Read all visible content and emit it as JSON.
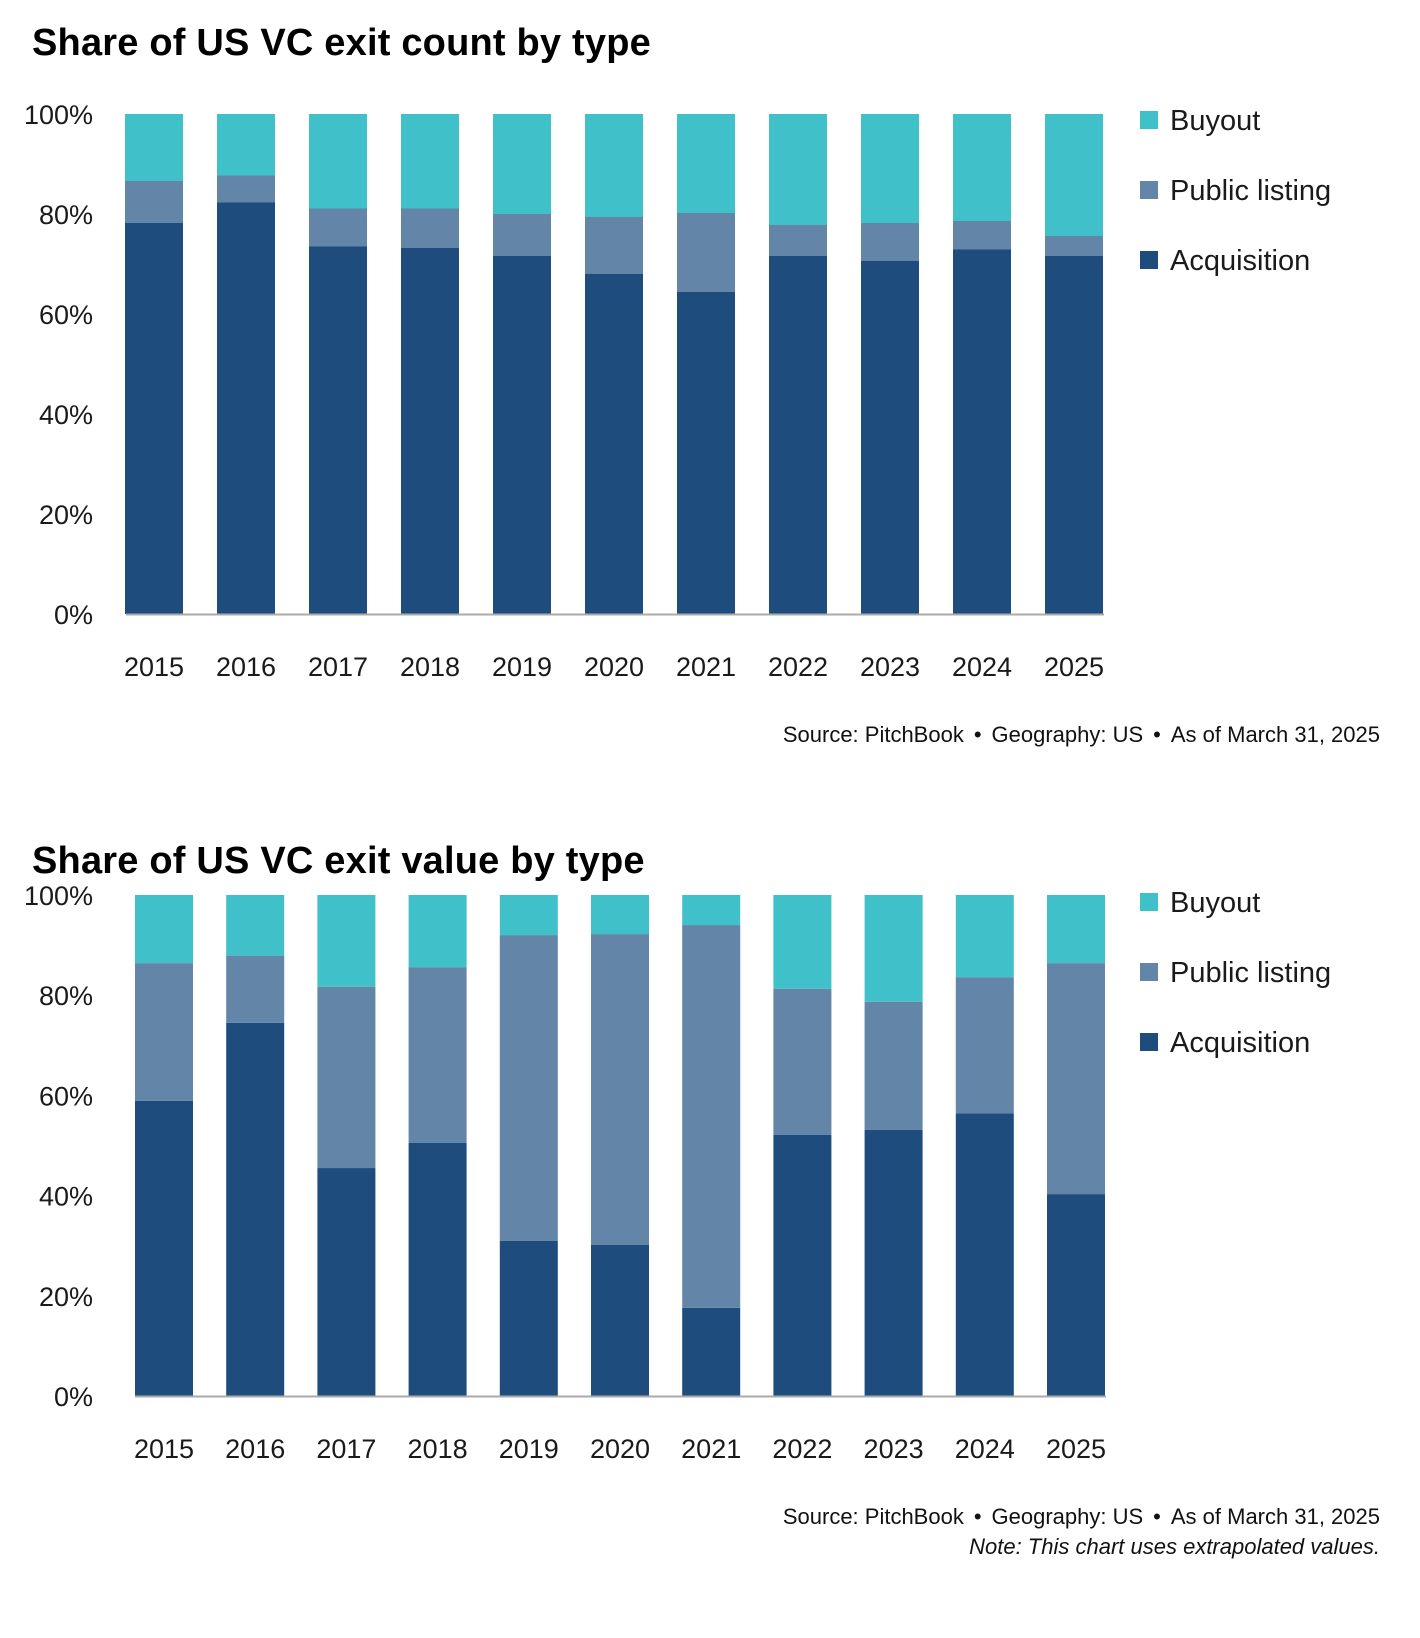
{
  "colors": {
    "buyout": "#40C1C9",
    "public_listing": "#6285A8",
    "acquisition": "#1E4D7D",
    "axis": "#AAAAAA"
  },
  "footer": {
    "source": "Source: PitchBook",
    "separator": "•",
    "geography": "Geography: US",
    "as_of": "As of March 31, 2025",
    "note": "Note: This chart uses extrapolated values."
  },
  "chart_data": [
    {
      "type": "bar",
      "stacked": true,
      "title": "Share of US VC exit count by type",
      "categories": [
        "2015",
        "2016",
        "2017",
        "2018",
        "2019",
        "2020",
        "2021",
        "2022",
        "2023",
        "2024",
        "2025"
      ],
      "ylim": [
        0,
        100
      ],
      "yticks": [
        "0%",
        "20%",
        "40%",
        "60%",
        "80%",
        "100%"
      ],
      "legend": [
        "Buyout",
        "Public listing",
        "Acquisition"
      ],
      "legend_position": "right",
      "grid": false,
      "series": [
        {
          "name": "Acquisition",
          "values": [
            78.2,
            82.3,
            73.5,
            73.2,
            71.6,
            68.0,
            64.4,
            71.6,
            70.6,
            72.9,
            71.6
          ]
        },
        {
          "name": "Public listing",
          "values": [
            8.4,
            5.4,
            7.6,
            7.9,
            8.4,
            11.4,
            15.8,
            6.2,
            7.6,
            5.7,
            4.0
          ]
        },
        {
          "name": "Buyout",
          "values": [
            13.4,
            12.3,
            18.9,
            18.9,
            20.0,
            20.6,
            19.8,
            22.2,
            21.8,
            21.4,
            24.4
          ]
        }
      ]
    },
    {
      "type": "bar",
      "stacked": true,
      "title": "Share of US VC exit value by type",
      "categories": [
        "2015",
        "2016",
        "2017",
        "2018",
        "2019",
        "2020",
        "2021",
        "2022",
        "2023",
        "2024",
        "2025"
      ],
      "ylim": [
        0,
        100
      ],
      "yticks": [
        "0%",
        "20%",
        "40%",
        "60%",
        "80%",
        "100%"
      ],
      "legend": [
        "Buyout",
        "Public listing",
        "Acquisition"
      ],
      "legend_position": "right",
      "grid": false,
      "series": [
        {
          "name": "Acquisition",
          "values": [
            58.9,
            74.5,
            45.5,
            50.5,
            31.0,
            30.2,
            17.6,
            52.1,
            53.1,
            56.4,
            40.3
          ]
        },
        {
          "name": "Public listing",
          "values": [
            27.5,
            13.4,
            36.2,
            35.1,
            61.0,
            62.0,
            76.4,
            29.2,
            25.6,
            27.2,
            46.1
          ]
        },
        {
          "name": "Buyout",
          "values": [
            13.6,
            12.1,
            18.3,
            14.4,
            8.0,
            7.8,
            6.0,
            18.7,
            21.3,
            16.4,
            13.6
          ]
        }
      ]
    }
  ]
}
